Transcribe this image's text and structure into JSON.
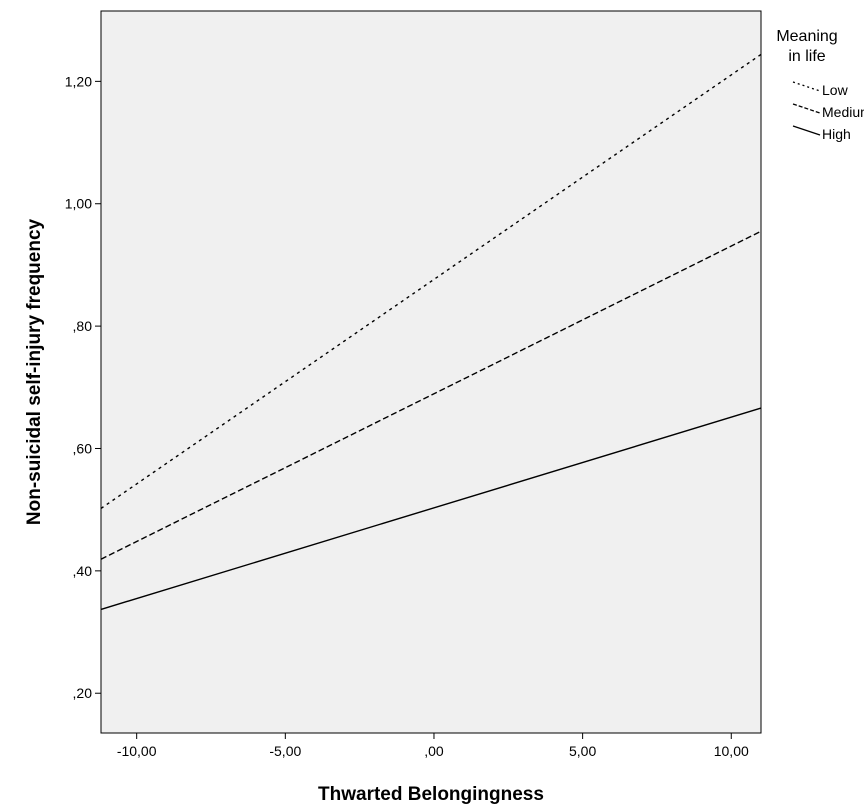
{
  "chart_data": {
    "type": "line",
    "xlabel": "Thwarted Belongingness",
    "ylabel": "Non-suicidal self-injury frequency",
    "xlim": [
      -11.2,
      11.0
    ],
    "ylim": [
      0.135,
      1.315
    ],
    "x_ticks": [
      -10,
      -5,
      0,
      5,
      10
    ],
    "x_tick_labels": [
      "-10,00",
      "-5,00",
      ",00",
      "5,00",
      "10,00"
    ],
    "y_ticks": [
      0.2,
      0.4,
      0.6,
      0.8,
      1.0,
      1.2
    ],
    "y_tick_labels": [
      ",20",
      ",40",
      ",60",
      ",80",
      "1,00",
      "1,20"
    ],
    "grid": false,
    "background_color": "#f0f0f0",
    "line_color": "#000000",
    "legend": {
      "title_line1": "Meaning",
      "title_line2": "in life",
      "placement": "outside-top-right"
    },
    "series": [
      {
        "name": "Low",
        "style": "dotted",
        "x": [
          -11.2,
          11.0
        ],
        "y": [
          0.502,
          1.244
        ]
      },
      {
        "name": "Medium",
        "style": "dashed",
        "x": [
          -11.2,
          11.0
        ],
        "y": [
          0.419,
          0.955
        ]
      },
      {
        "name": "High",
        "style": "solid",
        "x": [
          -11.2,
          11.0
        ],
        "y": [
          0.337,
          0.666
        ]
      }
    ]
  }
}
